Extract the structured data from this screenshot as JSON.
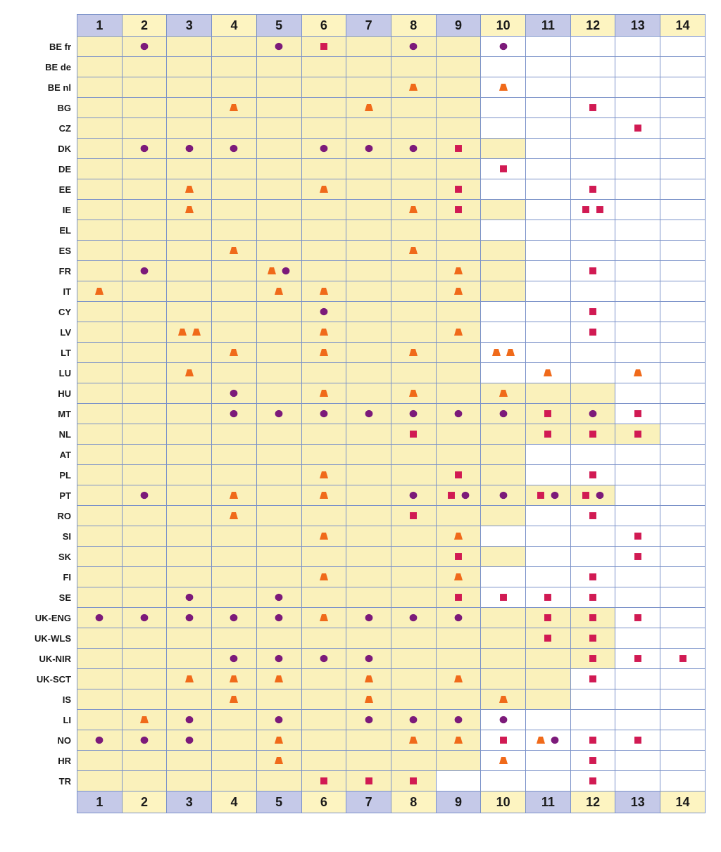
{
  "layout": {
    "columns": 14,
    "cell_border_color": "#7b92c9",
    "header_odd_bg": "#c5c9e8",
    "header_even_bg": "#fdf4c1",
    "header_text_color": "#1a1a1a",
    "highlight_bg": "#faf1bb",
    "plain_bg": "#ffffff",
    "rowlabel_color": "#1a1a1a",
    "marker_size": 16
  },
  "colors": {
    "circle": "#7c1a7a",
    "square": "#d11a53",
    "trapezoid": "#f06a1a"
  },
  "rows": [
    {
      "label": "BE fr",
      "hl": 9,
      "cells": {
        "2": [
          "c"
        ],
        "5": [
          "c"
        ],
        "6": [
          "s"
        ],
        "8": [
          "c"
        ],
        "10": [
          "c"
        ]
      }
    },
    {
      "label": "BE de",
      "hl": 9,
      "cells": {}
    },
    {
      "label": "BE nl",
      "hl": 9,
      "cells": {
        "8": [
          "t"
        ],
        "10": [
          "t"
        ]
      }
    },
    {
      "label": "BG",
      "hl": 9,
      "cells": {
        "4": [
          "t"
        ],
        "7": [
          "t"
        ],
        "12": [
          "s"
        ]
      }
    },
    {
      "label": "CZ",
      "hl": 9,
      "cells": {
        "13": [
          "s"
        ]
      }
    },
    {
      "label": "DK",
      "hl": 10,
      "cells": {
        "2": [
          "c"
        ],
        "3": [
          "c"
        ],
        "4": [
          "c"
        ],
        "6": [
          "c"
        ],
        "7": [
          "c"
        ],
        "8": [
          "c"
        ],
        "9": [
          "s"
        ]
      }
    },
    {
      "label": "DE",
      "hl": 9,
      "cells": {
        "10": [
          "s"
        ]
      }
    },
    {
      "label": "EE",
      "hl": 9,
      "cells": {
        "3": [
          "t"
        ],
        "6": [
          "t"
        ],
        "9": [
          "s"
        ],
        "12": [
          "s"
        ]
      }
    },
    {
      "label": "IE",
      "hl": 10,
      "cells": {
        "3": [
          "t"
        ],
        "8": [
          "t"
        ],
        "9": [
          "s"
        ],
        "12": [
          "s",
          "s"
        ]
      }
    },
    {
      "label": "EL",
      "hl": 9,
      "cells": {}
    },
    {
      "label": "ES",
      "hl": 10,
      "cells": {
        "4": [
          "t"
        ],
        "8": [
          "t"
        ]
      }
    },
    {
      "label": "FR",
      "hl": 10,
      "cells": {
        "2": [
          "c"
        ],
        "5": [
          "t",
          "c"
        ],
        "9": [
          "t"
        ],
        "12": [
          "s"
        ]
      }
    },
    {
      "label": "IT",
      "hl": 10,
      "cells": {
        "1": [
          "t"
        ],
        "5": [
          "t"
        ],
        "6": [
          "t"
        ],
        "9": [
          "t"
        ]
      }
    },
    {
      "label": "CY",
      "hl": 9,
      "cells": {
        "6": [
          "c"
        ],
        "12": [
          "s"
        ]
      }
    },
    {
      "label": "LV",
      "hl": 9,
      "cells": {
        "3": [
          "t",
          "t"
        ],
        "6": [
          "t"
        ],
        "9": [
          "t"
        ],
        "12": [
          "s"
        ]
      }
    },
    {
      "label": "LT",
      "hl": 9,
      "cells": {
        "4": [
          "t"
        ],
        "6": [
          "t"
        ],
        "8": [
          "t"
        ],
        "10": [
          "t",
          "t"
        ]
      }
    },
    {
      "label": "LU",
      "hl": 9,
      "cells": {
        "3": [
          "t"
        ],
        "11": [
          "t"
        ],
        "13": [
          "t"
        ]
      }
    },
    {
      "label": "HU",
      "hl": 12,
      "cells": {
        "4": [
          "c"
        ],
        "6": [
          "t"
        ],
        "8": [
          "t"
        ],
        "10": [
          "t"
        ]
      }
    },
    {
      "label": "MT",
      "hl": 12,
      "cells": {
        "4": [
          "c"
        ],
        "5": [
          "c"
        ],
        "6": [
          "c"
        ],
        "7": [
          "c"
        ],
        "8": [
          "c"
        ],
        "9": [
          "c"
        ],
        "10": [
          "c"
        ],
        "11": [
          "s"
        ],
        "12": [
          "c"
        ],
        "13": [
          "s"
        ]
      }
    },
    {
      "label": "NL",
      "hl": 13,
      "cells": {
        "8": [
          "s"
        ],
        "11": [
          "s"
        ],
        "12": [
          "s"
        ],
        "13": [
          "s"
        ]
      }
    },
    {
      "label": "AT",
      "hl": 10,
      "cells": {}
    },
    {
      "label": "PL",
      "hl": 10,
      "cells": {
        "6": [
          "t"
        ],
        "9": [
          "s"
        ],
        "12": [
          "s"
        ]
      }
    },
    {
      "label": "PT",
      "hl": 12,
      "cells": {
        "2": [
          "c"
        ],
        "4": [
          "t"
        ],
        "6": [
          "t"
        ],
        "8": [
          "c"
        ],
        "9": [
          "s",
          "c"
        ],
        "10": [
          "c"
        ],
        "11": [
          "s",
          "c"
        ],
        "12": [
          "s",
          "c"
        ]
      }
    },
    {
      "label": "RO",
      "hl": 10,
      "cells": {
        "4": [
          "t"
        ],
        "8": [
          "s"
        ],
        "12": [
          "s"
        ]
      }
    },
    {
      "label": "SI",
      "hl": 9,
      "cells": {
        "6": [
          "t"
        ],
        "9": [
          "t"
        ],
        "13": [
          "s"
        ]
      }
    },
    {
      "label": "SK",
      "hl": 10,
      "cells": {
        "9": [
          "s"
        ],
        "13": [
          "s"
        ]
      }
    },
    {
      "label": "FI",
      "hl": 9,
      "cells": {
        "6": [
          "t"
        ],
        "9": [
          "t"
        ],
        "12": [
          "s"
        ]
      }
    },
    {
      "label": "SE",
      "hl": 9,
      "cells": {
        "3": [
          "c"
        ],
        "5": [
          "c"
        ],
        "9": [
          "s"
        ],
        "10": [
          "s"
        ],
        "11": [
          "s"
        ],
        "12": [
          "s"
        ]
      }
    },
    {
      "label": "UK-ENG",
      "hl": 12,
      "cells": {
        "1": [
          "c"
        ],
        "2": [
          "c"
        ],
        "3": [
          "c"
        ],
        "4": [
          "c"
        ],
        "5": [
          "c"
        ],
        "6": [
          "t"
        ],
        "7": [
          "c"
        ],
        "8": [
          "c"
        ],
        "9": [
          "c"
        ],
        "11": [
          "s"
        ],
        "12": [
          "s"
        ],
        "13": [
          "s"
        ]
      }
    },
    {
      "label": "UK-WLS",
      "hl": 12,
      "cells": {
        "11": [
          "s"
        ],
        "12": [
          "s"
        ]
      }
    },
    {
      "label": "UK-NIR",
      "hl": 12,
      "cells": {
        "4": [
          "c"
        ],
        "5": [
          "c"
        ],
        "6": [
          "c"
        ],
        "7": [
          "c"
        ],
        "12": [
          "s"
        ],
        "13": [
          "s"
        ],
        "14": [
          "s"
        ]
      }
    },
    {
      "label": "UK-SCT",
      "hl": 11,
      "cells": {
        "3": [
          "t"
        ],
        "4": [
          "t"
        ],
        "5": [
          "t"
        ],
        "7": [
          "t"
        ],
        "9": [
          "t"
        ],
        "12": [
          "s"
        ]
      }
    },
    {
      "label": "IS",
      "hl": 11,
      "cells": {
        "4": [
          "t"
        ],
        "7": [
          "t"
        ],
        "10": [
          "t"
        ]
      }
    },
    {
      "label": "LI",
      "hl": 9,
      "cells": {
        "2": [
          "t"
        ],
        "3": [
          "c"
        ],
        "5": [
          "c"
        ],
        "7": [
          "c"
        ],
        "8": [
          "c"
        ],
        "9": [
          "c"
        ],
        "10": [
          "c"
        ]
      }
    },
    {
      "label": "NO",
      "hl": 9,
      "cells": {
        "1": [
          "c"
        ],
        "2": [
          "c"
        ],
        "3": [
          "c"
        ],
        "5": [
          "t"
        ],
        "8": [
          "t"
        ],
        "9": [
          "t"
        ],
        "10": [
          "s"
        ],
        "11": [
          "t",
          "c"
        ],
        "12": [
          "s"
        ],
        "13": [
          "s"
        ]
      }
    },
    {
      "label": "HR",
      "hl": 9,
      "cells": {
        "5": [
          "t"
        ],
        "10": [
          "t"
        ],
        "12": [
          "s"
        ]
      }
    },
    {
      "label": "TR",
      "hl": 8,
      "cells": {
        "6": [
          "s"
        ],
        "7": [
          "s"
        ],
        "8": [
          "s"
        ],
        "12": [
          "s"
        ]
      }
    }
  ]
}
